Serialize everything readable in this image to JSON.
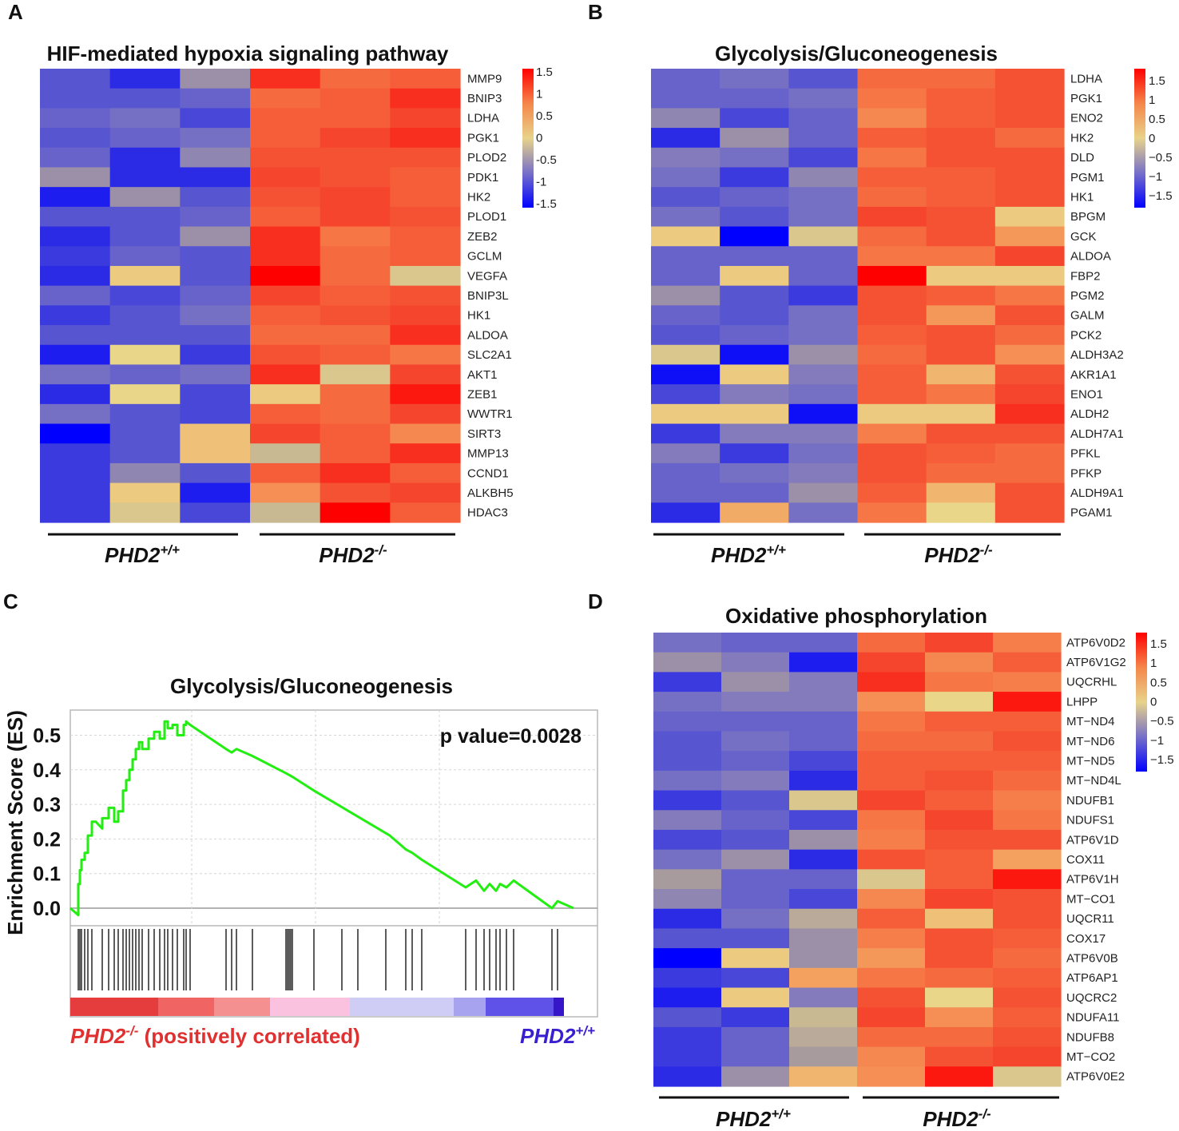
{
  "colorbar_ticks": [
    "1.5",
    "1",
    "0.5",
    "0",
    "−0.5",
    "−1",
    "−1.5"
  ],
  "panel_A_ticks": [
    "1.5",
    "1",
    "0.5",
    "0",
    "-0.5",
    "-1",
    "-1.5"
  ],
  "group_labels": {
    "wt_base": "PHD2",
    "wt_sup": "+/+",
    "ko_base": "PHD2",
    "ko_sup": "-/-"
  },
  "chart_data": [
    {
      "panel": "A",
      "type": "heatmap",
      "title": "HIF-mediated hypoxia signaling pathway",
      "columns": [
        "PHD2+/+ 1",
        "PHD2+/+ 2",
        "PHD2+/+ 3",
        "PHD2-/- 1",
        "PHD2-/- 2",
        "PHD2-/- 3"
      ],
      "rows": [
        "MMP9",
        "BNIP3",
        "LDHA",
        "PGK1",
        "PLOD2",
        "PDK1",
        "HK2",
        "PLOD1",
        "ZEB2",
        "GCLM",
        "VEGFA",
        "BNIP3L",
        "HK1",
        "ALDOA",
        "SLC2A1",
        "AKT1",
        "ZEB1",
        "WWTR1",
        "SIRT3",
        "MMP13",
        "CCND1",
        "ALKBH5",
        "HDAC3"
      ],
      "values": [
        [
          -1.0,
          -1.3,
          -0.5,
          1.5,
          1.1,
          1.2
        ],
        [
          -1.0,
          -1.0,
          -0.9,
          1.1,
          1.2,
          1.5
        ],
        [
          -0.9,
          -0.8,
          -1.1,
          1.2,
          1.2,
          1.4
        ],
        [
          -1.0,
          -0.9,
          -0.8,
          1.2,
          1.4,
          1.5
        ],
        [
          -0.9,
          -1.3,
          -0.6,
          1.3,
          1.3,
          1.3
        ],
        [
          -0.5,
          -1.3,
          -1.3,
          1.4,
          1.3,
          1.2
        ],
        [
          -1.4,
          -0.5,
          -1.0,
          1.3,
          1.4,
          1.2
        ],
        [
          -1.0,
          -1.0,
          -0.9,
          1.2,
          1.4,
          1.3
        ],
        [
          -1.3,
          -1.0,
          -0.5,
          1.5,
          1.0,
          1.2
        ],
        [
          -1.2,
          -0.9,
          -1.0,
          1.5,
          1.1,
          1.2
        ],
        [
          -1.3,
          0.1,
          -1.0,
          1.7,
          1.1,
          -0.1
        ],
        [
          -0.9,
          -1.1,
          -0.9,
          1.4,
          1.2,
          1.3
        ],
        [
          -1.2,
          -1.0,
          -0.8,
          1.2,
          1.3,
          1.4
        ],
        [
          -1.0,
          -1.0,
          -1.0,
          1.1,
          1.1,
          1.5
        ],
        [
          -1.4,
          0.0,
          -1.2,
          1.3,
          1.2,
          1.0
        ],
        [
          -0.8,
          -0.9,
          -0.8,
          1.5,
          -0.1,
          1.4
        ],
        [
          -1.3,
          0.0,
          -1.1,
          0.1,
          1.1,
          1.6
        ],
        [
          -0.8,
          -1.0,
          -1.1,
          1.2,
          1.1,
          1.4
        ],
        [
          -1.6,
          -1.0,
          0.2,
          1.4,
          1.2,
          0.8
        ],
        [
          -1.2,
          -1.0,
          0.2,
          -0.2,
          1.2,
          1.5
        ],
        [
          -1.2,
          -0.6,
          -1.0,
          1.2,
          1.5,
          1.2
        ],
        [
          -1.2,
          0.1,
          -1.4,
          0.7,
          1.3,
          1.4
        ],
        [
          -1.2,
          -0.1,
          -1.1,
          -0.2,
          1.7,
          1.2
        ]
      ],
      "colorbar": {
        "min": -1.5,
        "max": 1.5
      }
    },
    {
      "panel": "B",
      "type": "heatmap",
      "title": "Glycolysis/Gluconeogenesis",
      "columns": [
        "PHD2+/+ 1",
        "PHD2+/+ 2",
        "PHD2+/+ 3",
        "PHD2-/- 1",
        "PHD2-/- 2",
        "PHD2-/- 3"
      ],
      "rows": [
        "LDHA",
        "PGK1",
        "ENO2",
        "HK2",
        "DLD",
        "PGM1",
        "HK1",
        "BPGM",
        "GCK",
        "ALDOA",
        "FBP2",
        "PGM2",
        "GALM",
        "PCK2",
        "ALDH3A2",
        "AKR1A1",
        "ENO1",
        "ALDH2",
        "ALDH7A1",
        "PFKL",
        "PFKP",
        "ALDH9A1",
        "PGAM1"
      ],
      "values": [
        [
          -0.9,
          -0.8,
          -1.0,
          1.1,
          1.1,
          1.3
        ],
        [
          -0.9,
          -0.9,
          -0.8,
          1.0,
          1.2,
          1.3
        ],
        [
          -0.6,
          -1.1,
          -0.9,
          0.8,
          1.2,
          1.3
        ],
        [
          -1.3,
          -0.5,
          -0.9,
          1.2,
          1.3,
          1.1
        ],
        [
          -0.7,
          -0.8,
          -1.1,
          1.0,
          1.3,
          1.3
        ],
        [
          -0.8,
          -1.2,
          -0.6,
          1.2,
          1.2,
          1.3
        ],
        [
          -1.0,
          -0.9,
          -0.8,
          1.1,
          1.2,
          1.3
        ],
        [
          -0.8,
          -1.0,
          -0.8,
          1.4,
          1.3,
          0.1
        ],
        [
          0.1,
          -1.7,
          -0.1,
          1.1,
          1.3,
          0.6
        ],
        [
          -0.9,
          -0.9,
          -0.9,
          1.0,
          1.0,
          1.4
        ],
        [
          -0.9,
          0.1,
          -0.9,
          1.7,
          0.1,
          0.1
        ],
        [
          -0.5,
          -1.0,
          -1.2,
          1.3,
          1.2,
          1.0
        ],
        [
          -0.9,
          -1.0,
          -0.8,
          1.3,
          0.6,
          1.3
        ],
        [
          -1.0,
          -0.9,
          -0.8,
          1.2,
          1.3,
          1.1
        ],
        [
          -0.1,
          -1.5,
          -0.5,
          1.1,
          1.3,
          0.7
        ],
        [
          -1.5,
          0.1,
          -0.7,
          1.2,
          0.3,
          1.3
        ],
        [
          -1.1,
          -0.7,
          -0.8,
          1.2,
          1.0,
          1.4
        ],
        [
          0.1,
          0.1,
          -1.5,
          0.1,
          0.1,
          1.5
        ],
        [
          -1.2,
          -0.7,
          -0.7,
          0.9,
          1.3,
          1.3
        ],
        [
          -0.7,
          -1.2,
          -0.8,
          1.3,
          1.2,
          1.1
        ],
        [
          -0.9,
          -0.8,
          -0.7,
          1.3,
          1.1,
          1.1
        ],
        [
          -0.9,
          -0.9,
          -0.5,
          1.2,
          0.3,
          1.3
        ],
        [
          -1.3,
          0.4,
          -0.8,
          1.0,
          0.0,
          1.3
        ]
      ],
      "colorbar": {
        "min": -1.5,
        "max": 1.5
      }
    },
    {
      "panel": "C",
      "type": "line",
      "title": "Glycolysis/Gluconeogenesis",
      "ylabel": "Enrichment Score (ES)",
      "annotation": "p value=0.0028",
      "yticks": [
        "0.0",
        "0.1",
        "0.2",
        "0.3",
        "0.4",
        "0.5"
      ],
      "ylim": [
        -0.06,
        0.58
      ],
      "xlim": [
        0,
        630
      ],
      "series": [
        {
          "name": "ES",
          "x": [
            0,
            10,
            10,
            12,
            12,
            14,
            14,
            18,
            18,
            22,
            22,
            27,
            27,
            32,
            40,
            40,
            48,
            48,
            55,
            55,
            60,
            60,
            66,
            66,
            70,
            70,
            74,
            74,
            78,
            78,
            82,
            82,
            86,
            86,
            90,
            90,
            98,
            98,
            105,
            105,
            112,
            112,
            118,
            118,
            122,
            122,
            128,
            128,
            134,
            134,
            142,
            142,
            145,
            145,
            150,
            195,
            195,
            202,
            202,
            208,
            208,
            228,
            228,
            270,
            270,
            278,
            278,
            305,
            305,
            400,
            420,
            420,
            428,
            428,
            440,
            440,
            495,
            495,
            508,
            508,
            518,
            518,
            525,
            525,
            533,
            533,
            538,
            538,
            546,
            546,
            555,
            603,
            603,
            610,
            610,
            630
          ],
          "y": [
            0.0,
            -0.02,
            0.07,
            0.07,
            0.11,
            0.11,
            0.14,
            0.14,
            0.16,
            0.16,
            0.21,
            0.21,
            0.25,
            0.25,
            0.23,
            0.26,
            0.26,
            0.29,
            0.29,
            0.25,
            0.25,
            0.28,
            0.28,
            0.34,
            0.34,
            0.37,
            0.37,
            0.4,
            0.4,
            0.43,
            0.43,
            0.46,
            0.46,
            0.48,
            0.48,
            0.46,
            0.46,
            0.49,
            0.49,
            0.51,
            0.51,
            0.49,
            0.49,
            0.54,
            0.54,
            0.52,
            0.52,
            0.53,
            0.53,
            0.5,
            0.5,
            0.53,
            0.53,
            0.54,
            0.53,
            0.46,
            0.46,
            0.45,
            0.45,
            0.46,
            0.46,
            0.44,
            0.44,
            0.39,
            0.39,
            0.38,
            0.38,
            0.34,
            0.34,
            0.21,
            0.17,
            0.17,
            0.16,
            0.16,
            0.14,
            0.14,
            0.06,
            0.06,
            0.08,
            0.08,
            0.05,
            0.05,
            0.07,
            0.07,
            0.05,
            0.05,
            0.07,
            0.07,
            0.06,
            0.06,
            0.08,
            0.0,
            0.0,
            0.02,
            0.02,
            0.0
          ]
        }
      ],
      "hits": [
        10,
        12,
        14,
        18,
        22,
        27,
        40,
        48,
        55,
        60,
        66,
        70,
        74,
        78,
        82,
        86,
        90,
        98,
        105,
        112,
        118,
        122,
        128,
        134,
        142,
        145,
        150,
        195,
        202,
        208,
        228,
        270,
        272,
        274,
        276,
        278,
        305,
        340,
        360,
        395,
        420,
        428,
        440,
        495,
        508,
        518,
        525,
        533,
        538,
        546,
        555,
        603,
        610
      ],
      "bar_gradient": [
        {
          "start": 0,
          "end": 110,
          "color": "#e53d3d"
        },
        {
          "start": 110,
          "end": 180,
          "color": "#f06464"
        },
        {
          "start": 180,
          "end": 250,
          "color": "#f59090"
        },
        {
          "start": 250,
          "end": 350,
          "color": "#fbc2e0"
        },
        {
          "start": 350,
          "end": 480,
          "color": "#cfcdf5"
        },
        {
          "start": 480,
          "end": 520,
          "color": "#a7a3ee"
        },
        {
          "start": 520,
          "end": 605,
          "color": "#5f52e8"
        },
        {
          "start": 605,
          "end": 618,
          "color": "#3716c9"
        }
      ],
      "xlabel_left": {
        "base": "PHD2",
        "sup": "-/-",
        "rest": " (positively correlated)"
      },
      "xlabel_right": {
        "base": "PHD2",
        "sup": "+/+"
      }
    },
    {
      "panel": "D",
      "type": "heatmap",
      "title": "Oxidative phosphorylation",
      "columns": [
        "PHD2+/+ 1",
        "PHD2+/+ 2",
        "PHD2+/+ 3",
        "PHD2-/- 1",
        "PHD2-/- 2",
        "PHD2-/- 3"
      ],
      "rows": [
        "ATP6V0D2",
        "ATP6V1G2",
        "UQCRHL",
        "LHPP",
        "MT−ND4",
        "MT−ND6",
        "MT−ND5",
        "MT−ND4L",
        "NDUFB1",
        "NDUFS1",
        "ATP6V1D",
        "COX11",
        "ATP6V1H",
        "MT−CO1",
        "UQCR11",
        "COX17",
        "ATP6V0B",
        "ATP6AP1",
        "UQCRC2",
        "NDUFA11",
        "NDUFB8",
        "MT−CO2",
        "ATP6V0E2"
      ],
      "values": [
        [
          -0.8,
          -0.9,
          -0.9,
          1.1,
          1.4,
          0.9
        ],
        [
          -0.5,
          -0.7,
          -1.4,
          1.4,
          0.8,
          1.2
        ],
        [
          -1.2,
          -0.5,
          -0.7,
          1.5,
          1.0,
          0.9
        ],
        [
          -0.8,
          -0.7,
          -0.7,
          0.7,
          0.0,
          1.6
        ],
        [
          -0.9,
          -0.9,
          -0.9,
          1.0,
          1.2,
          1.2
        ],
        [
          -1.0,
          -0.8,
          -0.9,
          1.1,
          1.1,
          1.3
        ],
        [
          -1.0,
          -0.9,
          -1.1,
          1.2,
          1.2,
          1.2
        ],
        [
          -0.8,
          -0.7,
          -1.3,
          1.2,
          1.3,
          1.1
        ],
        [
          -1.2,
          -1.0,
          -0.1,
          1.4,
          1.2,
          0.9
        ],
        [
          -0.7,
          -0.9,
          -1.1,
          1.0,
          1.4,
          1.0
        ],
        [
          -1.1,
          -1.0,
          -0.5,
          0.9,
          1.3,
          1.3
        ],
        [
          -0.8,
          -0.5,
          -1.3,
          1.3,
          1.2,
          0.5
        ],
        [
          -0.4,
          -0.9,
          -0.9,
          -0.1,
          1.2,
          1.6
        ],
        [
          -0.6,
          -0.9,
          -1.1,
          0.8,
          1.4,
          1.3
        ],
        [
          -1.3,
          -0.8,
          -0.3,
          1.2,
          0.2,
          1.3
        ],
        [
          -1.0,
          -1.0,
          -0.5,
          0.9,
          1.3,
          1.2
        ],
        [
          -1.7,
          0.1,
          -0.5,
          0.6,
          1.3,
          1.1
        ],
        [
          -1.2,
          -1.1,
          0.5,
          1.0,
          1.1,
          1.2
        ],
        [
          -1.4,
          0.1,
          -0.7,
          1.3,
          0.0,
          1.3
        ],
        [
          -1.0,
          -1.2,
          -0.2,
          1.4,
          0.7,
          1.2
        ],
        [
          -1.2,
          -0.9,
          -0.3,
          1.1,
          1.1,
          1.3
        ],
        [
          -1.2,
          -0.9,
          -0.4,
          0.8,
          1.3,
          1.4
        ],
        [
          -1.3,
          -0.5,
          0.3,
          0.7,
          1.6,
          -0.1
        ]
      ],
      "colorbar": {
        "min": -1.5,
        "max": 1.5
      }
    }
  ]
}
